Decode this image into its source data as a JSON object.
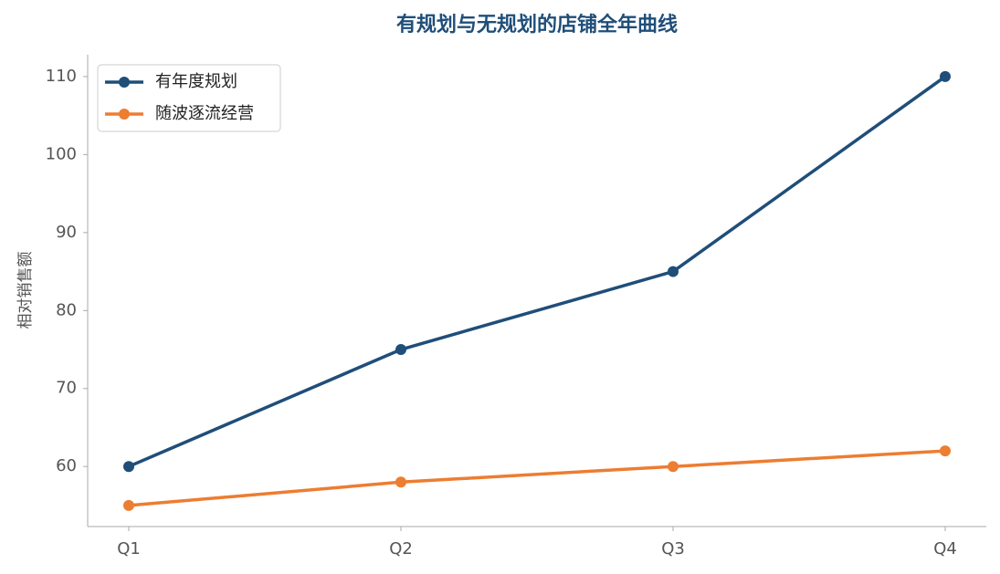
{
  "chart_data": {
    "type": "line",
    "title": "有规划与无规划的店铺全年曲线",
    "y_label": "相对销售额",
    "categories": [
      "Q1",
      "Q2",
      "Q3",
      "Q4"
    ],
    "series": [
      {
        "name": "有年度规划",
        "color": "#1f4e79",
        "values": [
          60,
          75,
          85,
          110
        ]
      },
      {
        "name": "随波逐流经营",
        "color": "#ed7d31",
        "values": [
          55,
          58,
          60,
          62
        ]
      }
    ],
    "ylim": [
      52.3,
      112.8
    ],
    "yticks": [
      60,
      70,
      80,
      90,
      100,
      110
    ],
    "legend": "upper-left"
  }
}
